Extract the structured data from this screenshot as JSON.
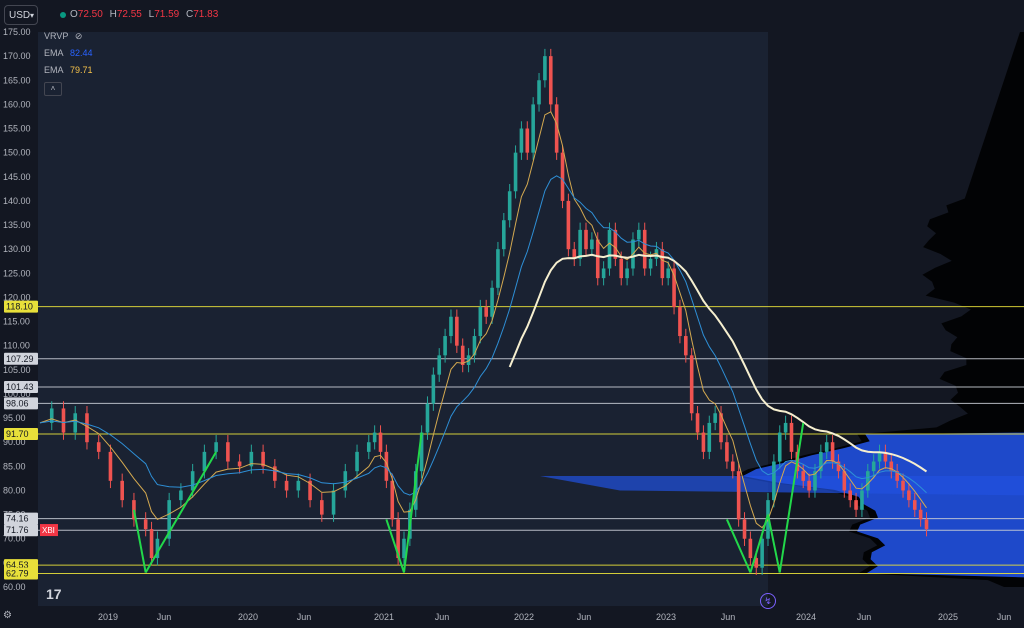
{
  "currency": "USD",
  "ohlc": {
    "o_label": "O",
    "o": "72.50",
    "h_label": "H",
    "h": "72.55",
    "l_label": "L",
    "l": "71.59",
    "c_label": "C",
    "c": "71.83"
  },
  "indicators": [
    {
      "name": "VRVP",
      "value": ""
    },
    {
      "name": "EMA",
      "value": "82.44",
      "color": "#2962ff"
    },
    {
      "name": "EMA",
      "value": "79.71",
      "color": "#f7c34a"
    }
  ],
  "symbol_tag": "XBI",
  "colors": {
    "up": "#26a69a",
    "down": "#ef5350",
    "ema_fast": "#d4a950",
    "ema_mid": "#2e8fd6",
    "ema_slow": "#f6efcf",
    "profile": "#2151e0",
    "arrow": "#22d84a",
    "level_yellow": "#e8e03a",
    "level_white": "#c8ccd4"
  },
  "chart_data": {
    "type": "line",
    "price_axis": {
      "min": 57,
      "max": 176,
      "ticks": [
        "175.00",
        "170.00",
        "165.00",
        "160.00",
        "155.00",
        "150.00",
        "145.00",
        "140.00",
        "135.00",
        "130.00",
        "125.00",
        "120.00",
        "115.00",
        "110.00",
        "105.00",
        "100.00",
        "95.00",
        "90.00",
        "85.00",
        "80.00",
        "75.00",
        "70.00",
        "65.00",
        "60.00"
      ]
    },
    "time_axis": [
      "2019",
      "Jun",
      "2020",
      "Jun",
      "2021",
      "Jun",
      "2022",
      "Jun",
      "2023",
      "Jun",
      "2024",
      "Jun",
      "2025",
      "Jun"
    ],
    "level_labels": [
      {
        "text": "118.10",
        "value": 118.1,
        "style": "yellow"
      },
      {
        "text": "107.29",
        "value": 107.29,
        "style": "white"
      },
      {
        "text": "101.43",
        "value": 101.43,
        "style": "white"
      },
      {
        "text": "98.06",
        "value": 98.06,
        "style": "white"
      },
      {
        "text": "91.70",
        "value": 91.7,
        "style": "yellow"
      },
      {
        "text": "74.16",
        "value": 74.16,
        "style": "white"
      },
      {
        "text": "71.76",
        "value": 71.76,
        "style": "white"
      },
      {
        "text": "64.53",
        "value": 64.53,
        "style": "yellow"
      },
      {
        "text": "62.79",
        "value": 62.79,
        "style": "yellow"
      }
    ],
    "price_series": [
      [
        0,
        94
      ],
      [
        2,
        97
      ],
      [
        4,
        92
      ],
      [
        6,
        96
      ],
      [
        8,
        90
      ],
      [
        10,
        88
      ],
      [
        12,
        82
      ],
      [
        14,
        78
      ],
      [
        16,
        74
      ],
      [
        18,
        72
      ],
      [
        19,
        66
      ],
      [
        20,
        70
      ],
      [
        22,
        78
      ],
      [
        24,
        80
      ],
      [
        26,
        84
      ],
      [
        28,
        88
      ],
      [
        30,
        90
      ],
      [
        32,
        86
      ],
      [
        34,
        85
      ],
      [
        36,
        88
      ],
      [
        38,
        85
      ],
      [
        40,
        82
      ],
      [
        42,
        80
      ],
      [
        44,
        82
      ],
      [
        46,
        78
      ],
      [
        48,
        75
      ],
      [
        50,
        80
      ],
      [
        52,
        84
      ],
      [
        54,
        88
      ],
      [
        56,
        90
      ],
      [
        57,
        92
      ],
      [
        58,
        88
      ],
      [
        59,
        82
      ],
      [
        60,
        74
      ],
      [
        61,
        66
      ],
      [
        62,
        70
      ],
      [
        63,
        76
      ],
      [
        64,
        84
      ],
      [
        65,
        92
      ],
      [
        66,
        98
      ],
      [
        67,
        104
      ],
      [
        68,
        108
      ],
      [
        69,
        112
      ],
      [
        70,
        116
      ],
      [
        71,
        110
      ],
      [
        72,
        106
      ],
      [
        73,
        108
      ],
      [
        74,
        112
      ],
      [
        75,
        118
      ],
      [
        76,
        116
      ],
      [
        77,
        122
      ],
      [
        78,
        130
      ],
      [
        79,
        136
      ],
      [
        80,
        142
      ],
      [
        81,
        150
      ],
      [
        82,
        155
      ],
      [
        83,
        150
      ],
      [
        84,
        160
      ],
      [
        85,
        165
      ],
      [
        86,
        170
      ],
      [
        87,
        160
      ],
      [
        88,
        150
      ],
      [
        89,
        140
      ],
      [
        90,
        130
      ],
      [
        91,
        128
      ],
      [
        92,
        134
      ],
      [
        93,
        130
      ],
      [
        94,
        132
      ],
      [
        95,
        124
      ],
      [
        96,
        126
      ],
      [
        97,
        134
      ],
      [
        98,
        128
      ],
      [
        99,
        124
      ],
      [
        100,
        126
      ],
      [
        101,
        132
      ],
      [
        102,
        134
      ],
      [
        103,
        126
      ],
      [
        104,
        128
      ],
      [
        105,
        130
      ],
      [
        106,
        124
      ],
      [
        107,
        126
      ],
      [
        108,
        118
      ],
      [
        109,
        112
      ],
      [
        110,
        108
      ],
      [
        111,
        96
      ],
      [
        112,
        92
      ],
      [
        113,
        88
      ],
      [
        114,
        94
      ],
      [
        115,
        96
      ],
      [
        116,
        90
      ],
      [
        117,
        86
      ],
      [
        118,
        84
      ],
      [
        119,
        74
      ],
      [
        120,
        70
      ],
      [
        121,
        66
      ],
      [
        122,
        64
      ],
      [
        123,
        70
      ],
      [
        124,
        78
      ],
      [
        125,
        86
      ],
      [
        126,
        92
      ],
      [
        127,
        94
      ],
      [
        128,
        88
      ],
      [
        129,
        84
      ],
      [
        130,
        82
      ],
      [
        131,
        80
      ],
      [
        132,
        84
      ],
      [
        133,
        88
      ],
      [
        134,
        90
      ],
      [
        135,
        86
      ],
      [
        136,
        84
      ],
      [
        137,
        80
      ],
      [
        138,
        78
      ],
      [
        139,
        76
      ],
      [
        140,
        80
      ],
      [
        141,
        84
      ],
      [
        142,
        86
      ],
      [
        143,
        88
      ],
      [
        144,
        86
      ],
      [
        145,
        84
      ],
      [
        146,
        82
      ],
      [
        147,
        80
      ],
      [
        148,
        78
      ],
      [
        149,
        76
      ],
      [
        150,
        74
      ],
      [
        151,
        72
      ]
    ]
  }
}
